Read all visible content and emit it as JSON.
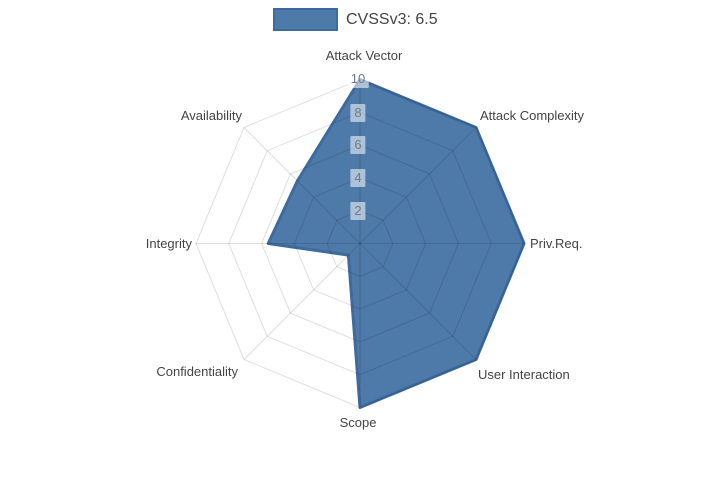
{
  "legend": {
    "label": "CVSSv3: 6.5"
  },
  "chart_data": {
    "type": "radar",
    "title": "",
    "categories": [
      "Attack Vector",
      "Attack Complexity",
      "Priv.Req.",
      "User Interaction",
      "Scope",
      "Confidentiality",
      "Integrity",
      "Availability"
    ],
    "series": [
      {
        "name": "CVSSv3: 6.5",
        "values": [
          10,
          10,
          10,
          10,
          10,
          1,
          5.6,
          5.4
        ]
      }
    ],
    "radial_ticks": [
      2,
      4,
      6,
      8,
      10
    ],
    "radial_range": [
      0,
      10
    ],
    "legend_position": "top-center",
    "grid": true,
    "grid_layer": "above-traces",
    "fill_color": "#4d7aa8",
    "line_color": "#3e6b9e",
    "grid_color": "rgba(0,0,0,0.13)",
    "label_color": "#444444",
    "tick_label_color": "#6e7b8a",
    "tick_label_bg": "rgba(255,255,255,0.55)"
  }
}
